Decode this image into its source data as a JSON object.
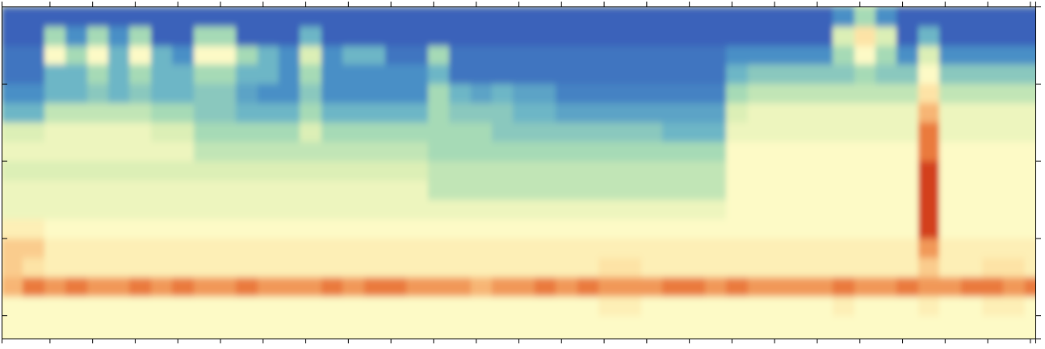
{
  "chart_data": {
    "type": "heatmap",
    "log": "y",
    "grid": false,
    "tick_labels": false,
    "xlim": [
      -1.125,
      23.125
    ],
    "xticks": [
      0,
      1,
      2,
      3,
      4,
      5,
      6,
      7,
      8,
      9,
      10,
      11,
      12,
      13,
      14,
      15,
      16,
      17,
      18,
      19,
      20,
      21,
      22,
      23
    ],
    "ylim": [
      0.5,
      10000
    ],
    "yticks": [
      1,
      10,
      100,
      1000
    ],
    "zlim": [
      0,
      10
    ],
    "x_bins": [
      -1.125,
      -0.625,
      -0.125,
      0.375,
      0.875,
      1.375,
      1.875,
      2.375,
      2.875,
      3.375,
      3.875,
      4.375,
      4.875,
      5.375,
      5.875,
      6.375,
      6.875,
      7.375,
      7.875,
      8.375,
      8.875,
      9.375,
      9.875,
      10.375,
      10.875,
      11.375,
      11.875,
      12.375,
      12.875,
      13.375,
      13.875,
      14.375,
      14.875,
      15.375,
      15.875,
      16.375,
      16.875,
      17.375,
      17.875,
      18.375,
      18.875,
      19.375,
      19.875,
      20.375,
      20.875,
      21.375,
      21.875,
      22.375,
      22.875,
      23.375
    ],
    "y_bins": [
      0.5,
      1,
      1.78,
      3.16,
      5.62,
      10,
      17.8,
      31.6,
      56.2,
      100,
      178,
      316,
      562,
      1000,
      1780,
      3160,
      5620,
      10000
    ],
    "cells": [
      [
        6,
        6,
        6,
        6,
        6,
        6,
        6,
        6,
        6,
        6,
        6,
        6,
        6,
        6,
        6,
        6,
        6,
        6,
        6,
        6,
        6,
        6,
        6,
        6,
        6,
        6,
        6,
        6,
        6,
        6,
        6,
        6,
        6,
        6,
        6,
        6,
        6,
        6,
        6,
        6,
        6,
        6,
        6,
        6,
        6,
        6,
        6,
        6,
        6
      ],
      [
        6,
        6,
        6,
        6,
        6,
        6,
        6,
        6,
        6,
        6,
        6,
        6,
        6,
        6,
        6,
        6,
        6,
        6,
        6,
        6,
        6,
        6,
        6,
        6,
        6,
        6,
        6,
        6,
        6.5,
        6.5,
        6,
        6,
        6,
        6,
        6,
        6,
        6,
        6,
        6,
        6.5,
        6,
        6,
        6,
        6.5,
        6,
        6,
        6.5,
        6.5,
        6
      ],
      [
        8,
        9,
        8.5,
        9,
        8.5,
        8.5,
        9,
        8.5,
        9,
        8.5,
        8.5,
        9,
        8.5,
        8.5,
        8.5,
        9,
        8.5,
        9,
        9,
        8.5,
        8.5,
        8.5,
        8,
        8.5,
        8.5,
        9,
        8.5,
        9,
        8.5,
        8.5,
        8.5,
        9,
        9,
        8.5,
        9,
        8.5,
        8.5,
        8.5,
        8.5,
        9,
        8.5,
        8.5,
        9,
        8.5,
        8.5,
        9,
        9,
        8.5,
        9
      ],
      [
        7.5,
        7,
        6.5,
        6.5,
        6.5,
        6.5,
        6.5,
        6.5,
        6.5,
        6.5,
        6.5,
        6.5,
        6.5,
        6.5,
        6.5,
        6.5,
        6.5,
        6.5,
        6.5,
        6.5,
        6.5,
        6.5,
        6.5,
        6.5,
        6.5,
        6.5,
        6.5,
        6.5,
        7,
        7,
        6.5,
        6.5,
        6.5,
        6.5,
        6.5,
        6.5,
        6.5,
        6.5,
        6.5,
        6.5,
        6.5,
        6.5,
        6.5,
        7.5,
        6.5,
        6.5,
        7,
        7,
        6.5
      ],
      [
        7.5,
        7.5,
        6.5,
        6.5,
        6.5,
        6.5,
        6.5,
        6.5,
        6.5,
        6.5,
        6.5,
        6.5,
        6.5,
        6.5,
        6.5,
        6.5,
        6.5,
        6.5,
        6.5,
        6.5,
        6.5,
        6.5,
        6.5,
        6.5,
        6.5,
        6.5,
        6.5,
        6.5,
        6.5,
        6.5,
        6.5,
        6.5,
        6.5,
        6.5,
        6.5,
        6.5,
        6.5,
        6.5,
        6.5,
        6.5,
        6.5,
        6.5,
        6.5,
        8.5,
        6.5,
        6.5,
        6.5,
        6.5,
        6.5
      ],
      [
        6.5,
        6.5,
        6,
        6,
        6,
        6,
        6,
        6,
        6,
        6,
        6,
        6,
        6,
        6,
        6,
        6,
        6,
        6,
        6,
        6,
        6,
        6,
        6,
        6,
        6,
        6,
        6,
        6,
        6,
        6,
        6,
        6,
        6,
        6,
        6,
        6,
        6,
        6,
        6,
        6,
        6,
        6,
        6,
        10,
        6,
        6,
        6,
        6,
        6
      ],
      [
        5.5,
        5.5,
        5.5,
        5.5,
        5.5,
        5.5,
        5.5,
        5.5,
        5.5,
        5.5,
        5.5,
        5.5,
        5.5,
        5.5,
        5.5,
        5.5,
        5.5,
        5.5,
        5.5,
        5.5,
        5.5,
        5.5,
        5.5,
        5.5,
        5.5,
        5.5,
        5.5,
        5.5,
        5.5,
        5.5,
        5.5,
        5.5,
        5.5,
        5.5,
        6,
        6,
        6,
        6,
        6,
        6,
        6,
        6,
        6,
        10,
        6,
        6,
        6,
        6,
        6
      ],
      [
        5.5,
        5.5,
        5.5,
        5.5,
        5.5,
        5.5,
        5.5,
        5.5,
        5.5,
        5.5,
        5.5,
        5.5,
        5.5,
        5.5,
        5.5,
        5.5,
        5.5,
        5.5,
        5.5,
        5.5,
        4.5,
        4.5,
        4.5,
        4.5,
        4.5,
        4.5,
        4.5,
        4.5,
        4.5,
        4.5,
        4.5,
        4.5,
        4.5,
        4.5,
        6,
        6,
        6,
        6,
        6,
        6,
        6,
        6,
        6,
        10,
        6,
        6,
        6,
        6,
        6
      ],
      [
        5,
        5,
        5,
        5,
        5,
        5,
        5,
        5,
        5,
        5,
        5,
        5,
        5,
        5,
        5,
        5,
        5,
        5,
        5,
        5,
        4.5,
        4.5,
        4.5,
        4.5,
        4.5,
        4.5,
        4.5,
        4.5,
        4.5,
        4.5,
        4.5,
        4.5,
        4.5,
        4.5,
        6,
        6,
        6,
        6,
        6,
        6,
        6,
        6,
        6,
        10,
        6,
        6,
        6,
        6,
        6
      ],
      [
        5.5,
        5.5,
        5.5,
        5.5,
        5.5,
        5.5,
        5.5,
        5.5,
        5.5,
        4.5,
        4.5,
        4.5,
        4.5,
        4.5,
        4.5,
        4.5,
        4.5,
        4.5,
        4.5,
        4.5,
        4,
        4,
        4,
        4,
        4,
        4,
        4,
        4,
        4,
        4,
        4,
        4,
        4,
        4,
        6,
        6,
        6,
        6,
        6,
        6,
        6,
        6,
        6,
        9,
        6,
        6,
        6,
        6,
        6
      ],
      [
        5,
        5,
        5.5,
        5.5,
        5.5,
        5.5,
        5.5,
        5,
        5,
        4,
        4,
        4,
        4,
        4,
        5,
        4,
        4,
        4,
        4,
        4,
        4,
        4,
        4,
        3.5,
        3.5,
        3.5,
        3.5,
        3.5,
        3.5,
        3.5,
        3.5,
        3,
        3,
        3,
        5.5,
        5.5,
        5.5,
        5.5,
        5.5,
        5.5,
        5.5,
        5.5,
        5.5,
        9,
        5.5,
        5.5,
        5.5,
        5.5,
        5.5
      ],
      [
        3,
        3,
        4.5,
        4.5,
        4.5,
        4.5,
        4.5,
        4,
        4,
        3.5,
        3.5,
        3,
        3,
        3,
        4,
        3,
        3,
        3,
        3,
        3,
        4,
        3.5,
        3.5,
        3.5,
        3,
        3,
        2.5,
        2.5,
        2.5,
        2.5,
        2.5,
        2.5,
        2.5,
        2.5,
        5,
        5.5,
        5.5,
        5.5,
        5.5,
        5.5,
        5.5,
        5.5,
        5.5,
        8,
        5.5,
        5.5,
        5.5,
        5.5,
        5.5
      ],
      [
        2,
        2,
        3,
        3,
        3.5,
        3,
        3.5,
        3,
        3,
        3.5,
        3.5,
        2.5,
        2,
        2,
        3.5,
        2,
        2,
        2,
        2,
        2,
        4,
        3,
        2.5,
        3,
        2.5,
        2.5,
        1.5,
        1.5,
        1.5,
        1.5,
        1.5,
        1.5,
        1.5,
        1.5,
        4,
        4.5,
        4.5,
        4.5,
        4.5,
        4.5,
        4.5,
        4.5,
        4.5,
        7,
        4.5,
        4.5,
        4.5,
        4.5,
        4.5
      ],
      [
        1,
        1,
        3,
        3,
        4,
        3,
        4,
        3,
        3,
        4,
        4,
        3,
        3,
        2,
        4,
        2,
        2,
        2,
        2,
        2,
        3,
        1,
        1,
        1,
        1,
        1,
        1,
        1,
        1,
        1,
        1,
        1,
        1,
        1,
        3,
        3.5,
        3.5,
        3.5,
        3.5,
        3.5,
        4,
        3.5,
        3.5,
        6,
        3.5,
        3.5,
        3.5,
        3.5,
        3.5
      ],
      [
        1,
        1,
        6,
        4,
        6,
        3,
        6,
        3,
        2,
        6,
        6,
        4,
        3,
        2,
        5,
        2,
        3,
        3,
        1,
        1,
        4,
        1,
        1,
        1,
        1,
        1,
        1,
        1,
        1,
        1,
        1,
        1,
        1,
        1,
        2,
        2,
        2,
        2,
        2,
        4,
        6,
        4,
        2,
        5,
        2,
        2,
        2,
        2,
        2
      ],
      [
        0,
        0,
        4,
        2,
        4,
        2,
        4,
        0,
        0,
        4,
        4,
        0,
        0,
        0,
        3,
        0,
        0,
        0,
        0,
        0,
        0,
        0,
        0,
        0,
        0,
        0,
        0,
        0,
        0,
        0,
        0,
        0,
        0,
        0,
        0,
        0,
        0,
        0,
        0,
        5,
        7,
        5,
        0,
        3,
        0,
        0,
        0,
        0,
        0
      ],
      [
        0,
        0,
        0,
        0,
        0,
        0,
        0,
        0,
        0,
        0,
        0,
        0,
        0,
        0,
        0,
        0,
        0,
        0,
        0,
        0,
        0,
        0,
        0,
        0,
        0,
        0,
        0,
        0,
        0,
        0,
        0,
        0,
        0,
        0,
        0,
        0,
        0,
        0,
        0,
        2,
        4,
        2,
        0,
        0,
        0,
        0,
        0,
        0,
        0
      ]
    ]
  }
}
